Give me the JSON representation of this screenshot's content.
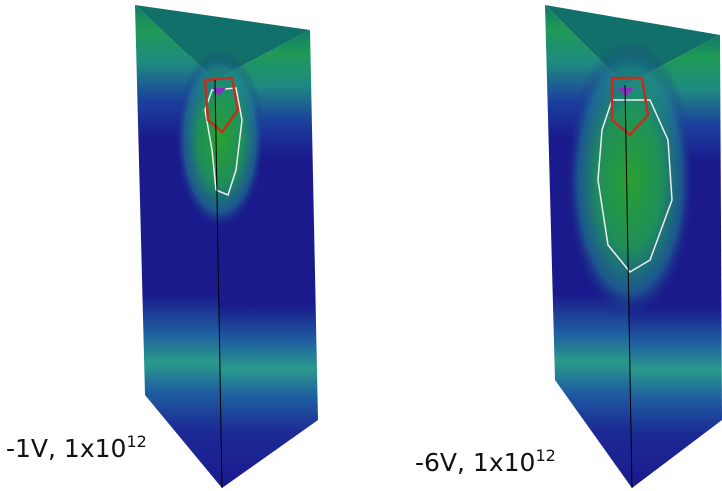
{
  "panels": [
    {
      "caption": {
        "base": "-1V, 1x10",
        "exponent": "12"
      }
    },
    {
      "caption": {
        "base": "-6V, 1x10",
        "exponent": "12"
      }
    }
  ]
}
